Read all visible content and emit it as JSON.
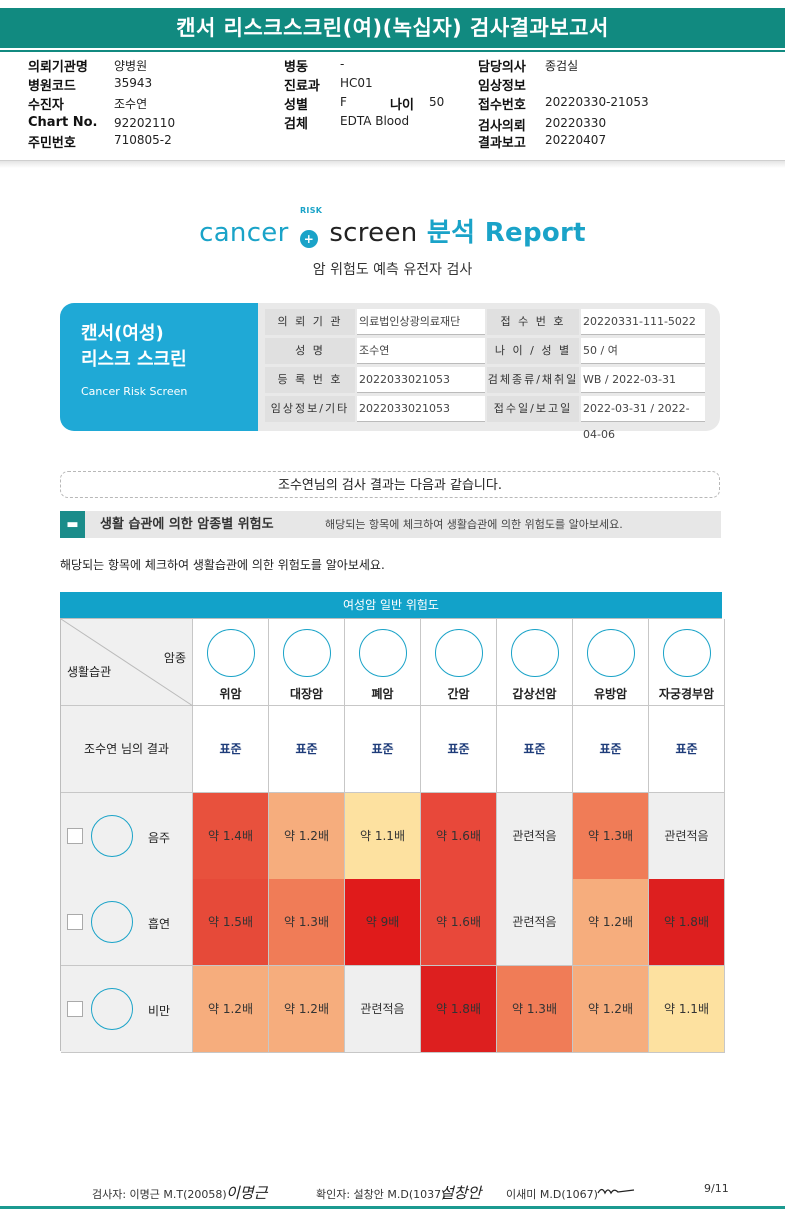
{
  "title": "캔서 리스크스크린(여)(녹십자) 검사결과보고서",
  "header": {
    "col1": [
      {
        "label": "의뢰기관명",
        "value": "양병원"
      },
      {
        "label": "병원코드",
        "value": "35943"
      },
      {
        "label": "수진자",
        "value": "조수연"
      },
      {
        "label": "Chart No.",
        "value": "92202110"
      },
      {
        "label": "주민번호",
        "value": "710805-2"
      }
    ],
    "col2": [
      {
        "label": "병동",
        "value": "-"
      },
      {
        "label": "진료과",
        "value": "HC01"
      },
      {
        "label": "성별",
        "value": "F"
      },
      {
        "label": "검체",
        "value": "EDTA Blood"
      }
    ],
    "age": {
      "label": "나이",
      "value": "50"
    },
    "col3": [
      {
        "label": "담당의사",
        "value": "종검실"
      },
      {
        "label": "임상정보",
        "value": ""
      },
      {
        "label": "접수번호",
        "value": "20220330-21053"
      },
      {
        "label": "검사의뢰",
        "value": "20220330"
      },
      {
        "label": "결과보고",
        "value": "20220407"
      }
    ]
  },
  "brand": {
    "word1": "cancer",
    "risk": "RISK",
    "word2": "screen",
    "word3": "분석 Report",
    "subtitle": "암 위험도 예측 유전자 검사"
  },
  "card": {
    "title_line1": "캔서(여성)",
    "title_line2": "리스크 스크린",
    "title_en": "Cancer Risk Screen",
    "rows": [
      {
        "k1": "의 뢰 기 관",
        "v1": "의료법인상광의료재단",
        "k2": "접 수 번 호",
        "v2": "20220331-111-5022"
      },
      {
        "k1": "성          명",
        "v1": "조수연",
        "k2": "나 이 / 성 별",
        "v2": "50 / 여"
      },
      {
        "k1": "등 록 번 호",
        "v1": "2022033021053",
        "k2": "검체종류/채취일",
        "v2": "WB / 2022-03-31"
      },
      {
        "k1": "임상정보/기타",
        "v1": "2022033021053",
        "k2": "접수일/보고일",
        "v2": "2022-03-31 / 2022-04-06"
      }
    ]
  },
  "result_line": "조수연님의 검사 결과는 다음과 같습니다.",
  "section": {
    "heading": "생활 습관에 의한 암종별 위험도",
    "desc": "해당되는 항목에 체크하여 생활습관에 의한 위험도를 알아보세요."
  },
  "note": "해당되는 항목에 체크하여 생활습관에 의한 위험도를 알아보세요.",
  "table": {
    "caption": "여성암 일반 위험도",
    "corner_top": "암종",
    "corner_bottom": "생활습관",
    "cancers": [
      "위암",
      "대장암",
      "폐암",
      "간암",
      "갑상선암",
      "유방암",
      "자궁경부암"
    ],
    "result_label": "조수연 님의 결과",
    "results": [
      "표준",
      "표준",
      "표준",
      "표준",
      "표준",
      "표준",
      "표준"
    ],
    "habits": [
      {
        "name": "음주",
        "icon": "alcohol-icon",
        "values": [
          "약 1.4배",
          "약 1.2배",
          "약 1.1배",
          "약 1.6배",
          "관련적음",
          "약 1.3배",
          "관련적음"
        ],
        "colors": [
          "#e8513d",
          "#f6ad7d",
          "#fde1a0",
          "#e8483a",
          "#efefef",
          "#f07c57",
          "#efefef"
        ]
      },
      {
        "name": "흡연",
        "icon": "smoking-icon",
        "values": [
          "약 1.5배",
          "약 1.3배",
          "약 9배",
          "약 1.6배",
          "관련적음",
          "약 1.2배",
          "약 1.8배"
        ],
        "colors": [
          "#e64a39",
          "#f07c57",
          "#e01b1b",
          "#e8483a",
          "#efefef",
          "#f6ad7d",
          "#dd1f1f"
        ]
      },
      {
        "name": "비만",
        "icon": "obesity-icon",
        "values": [
          "약 1.2배",
          "약 1.2배",
          "관련적음",
          "약 1.8배",
          "약 1.3배",
          "약 1.2배",
          "약 1.1배"
        ],
        "colors": [
          "#f6ad7d",
          "#f6ad7d",
          "#efefef",
          "#dd1f1f",
          "#f07c57",
          "#f6ad7d",
          "#fde1a0"
        ]
      }
    ]
  },
  "footer": {
    "tester": "검사자: 이명근 M.T(20058)",
    "tester_sig": "이명근",
    "confirmer": "확인자: 설창안 M.D(1037)",
    "confirmer_sig": "설창안",
    "third": "이새미 M.D(1067)",
    "page": "9/11"
  }
}
